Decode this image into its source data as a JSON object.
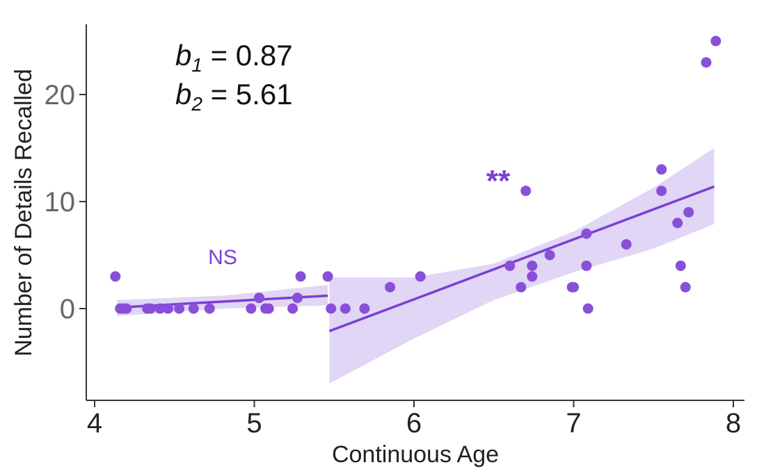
{
  "chart_data": {
    "type": "scatter",
    "xlabel": "Continuous Age",
    "ylabel": "Number of Details Recalled",
    "xlim": [
      4,
      8
    ],
    "ylim": [
      -8.5,
      26.5
    ],
    "xticks": [
      "4",
      "5",
      "6",
      "7",
      "8"
    ],
    "yticks": [
      "0",
      "10",
      "20"
    ],
    "grid": false,
    "colors": {
      "point": "#8A4FD8",
      "line": "#7B3FD4",
      "ribbon": "#DCCFF3"
    },
    "annotations": {
      "b1": {
        "symbol": "b",
        "sub": "1",
        "text": " = 0.87"
      },
      "b2": {
        "symbol": "b",
        "sub": "2",
        "text": " = 5.61"
      },
      "sig_left": "NS",
      "sig_right": "**"
    },
    "points": [
      {
        "x": 4.13,
        "y": 3
      },
      {
        "x": 4.16,
        "y": 0
      },
      {
        "x": 4.18,
        "y": 0
      },
      {
        "x": 4.2,
        "y": 0
      },
      {
        "x": 4.33,
        "y": 0
      },
      {
        "x": 4.35,
        "y": 0
      },
      {
        "x": 4.41,
        "y": 0
      },
      {
        "x": 4.46,
        "y": 0
      },
      {
        "x": 4.53,
        "y": 0
      },
      {
        "x": 4.62,
        "y": 0
      },
      {
        "x": 4.72,
        "y": 0
      },
      {
        "x": 4.98,
        "y": 0
      },
      {
        "x": 5.03,
        "y": 1
      },
      {
        "x": 5.07,
        "y": 0
      },
      {
        "x": 5.09,
        "y": 0
      },
      {
        "x": 5.24,
        "y": 0
      },
      {
        "x": 5.27,
        "y": 1
      },
      {
        "x": 5.29,
        "y": 3
      },
      {
        "x": 5.46,
        "y": 3
      },
      {
        "x": 5.48,
        "y": 0
      },
      {
        "x": 5.57,
        "y": 0
      },
      {
        "x": 5.69,
        "y": 0
      },
      {
        "x": 5.85,
        "y": 2
      },
      {
        "x": 6.04,
        "y": 3
      },
      {
        "x": 6.6,
        "y": 4
      },
      {
        "x": 6.67,
        "y": 2
      },
      {
        "x": 6.7,
        "y": 11
      },
      {
        "x": 6.74,
        "y": 4
      },
      {
        "x": 6.74,
        "y": 3
      },
      {
        "x": 6.85,
        "y": 5
      },
      {
        "x": 6.99,
        "y": 2
      },
      {
        "x": 7.0,
        "y": 2
      },
      {
        "x": 7.08,
        "y": 7
      },
      {
        "x": 7.08,
        "y": 4
      },
      {
        "x": 7.09,
        "y": 0
      },
      {
        "x": 7.33,
        "y": 6
      },
      {
        "x": 7.55,
        "y": 13
      },
      {
        "x": 7.55,
        "y": 11
      },
      {
        "x": 7.65,
        "y": 8
      },
      {
        "x": 7.67,
        "y": 4
      },
      {
        "x": 7.7,
        "y": 2
      },
      {
        "x": 7.72,
        "y": 9
      },
      {
        "x": 7.83,
        "y": 23
      },
      {
        "x": 7.89,
        "y": 25
      }
    ],
    "fits": [
      {
        "x": [
          4.14,
          5.46
        ],
        "y": [
          0.1,
          1.2
        ],
        "band": {
          "x": [
            4.14,
            4.8,
            5.46
          ],
          "lower": [
            -0.7,
            0.0,
            0.3
          ],
          "upper": [
            0.8,
            1.2,
            2.2
          ]
        }
      },
      {
        "x": [
          5.47,
          7.88
        ],
        "y": [
          -2.1,
          11.4
        ],
        "band": {
          "x": [
            5.47,
            6.0,
            6.5,
            7.0,
            7.5,
            7.88
          ],
          "lower": [
            -7.0,
            -2.8,
            0.8,
            3.4,
            5.6,
            7.9
          ],
          "upper": [
            2.9,
            2.9,
            4.2,
            7.2,
            11.3,
            15.0
          ]
        }
      }
    ]
  }
}
